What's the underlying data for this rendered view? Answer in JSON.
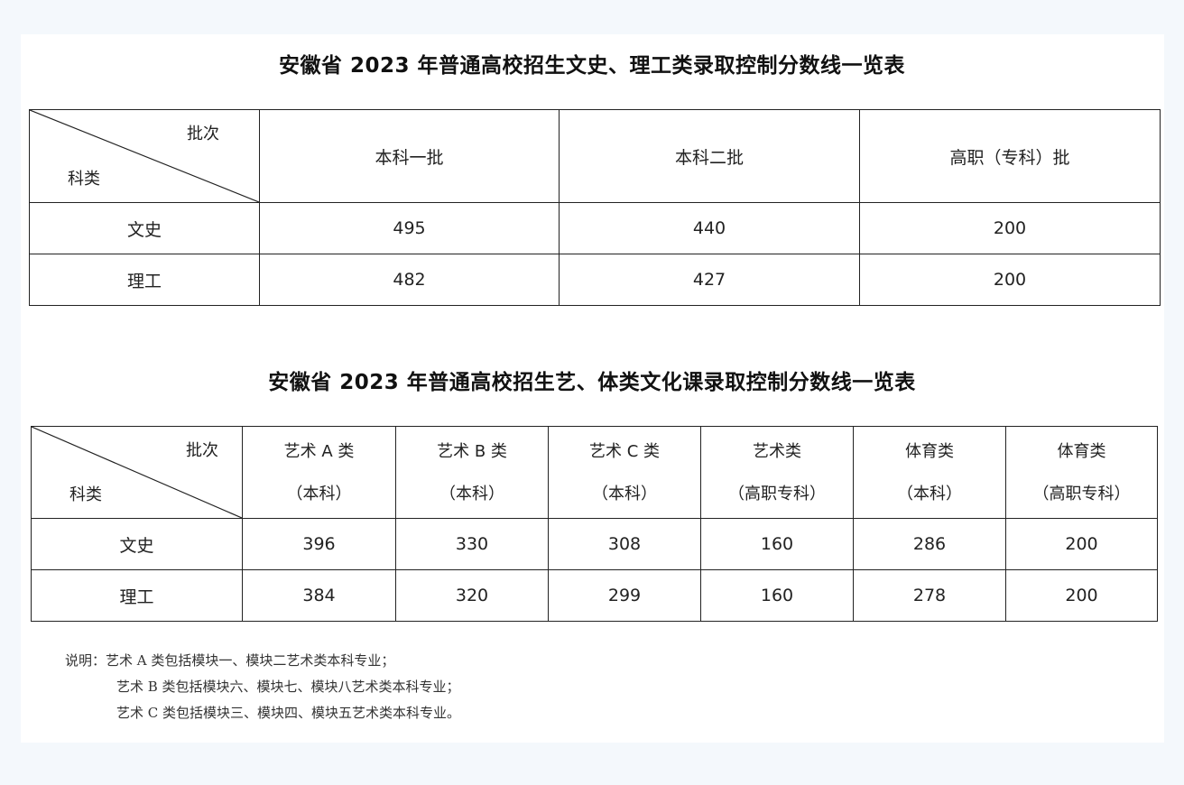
{
  "table1": {
    "title": "安徽省 2023 年普通高校招生文史、理工类录取控制分数线一览表",
    "corner_top": "批次",
    "corner_bottom": "科类",
    "headers": [
      "本科一批",
      "本科二批",
      "高职（专科）批"
    ],
    "rows": [
      {
        "label": "文史",
        "values": [
          "495",
          "440",
          "200"
        ]
      },
      {
        "label": "理工",
        "values": [
          "482",
          "427",
          "200"
        ]
      }
    ]
  },
  "table2": {
    "title": "安徽省 2023 年普通高校招生艺、体类文化课录取控制分数线一览表",
    "corner_top": "批次",
    "corner_bottom": "科类",
    "headers": [
      {
        "line1": "艺术 A 类",
        "line2": "（本科）"
      },
      {
        "line1": "艺术 B 类",
        "line2": "（本科）"
      },
      {
        "line1": "艺术 C 类",
        "line2": "（本科）"
      },
      {
        "line1": "艺术类",
        "line2": "（高职专科）"
      },
      {
        "line1": "体育类",
        "line2": "（本科）"
      },
      {
        "line1": "体育类",
        "line2": "（高职专科）"
      }
    ],
    "rows": [
      {
        "label": "文史",
        "values": [
          "396",
          "330",
          "308",
          "160",
          "286",
          "200"
        ]
      },
      {
        "label": "理工",
        "values": [
          "384",
          "320",
          "299",
          "160",
          "278",
          "200"
        ]
      }
    ]
  },
  "notes": [
    "说明：艺术 A 类包括模块一、模块二艺术类本科专业；",
    "艺术 B 类包括模块六、模块七、模块八艺术类本科专业；",
    "艺术 C 类包括模块三、模块四、模块五艺术类本科专业。"
  ]
}
